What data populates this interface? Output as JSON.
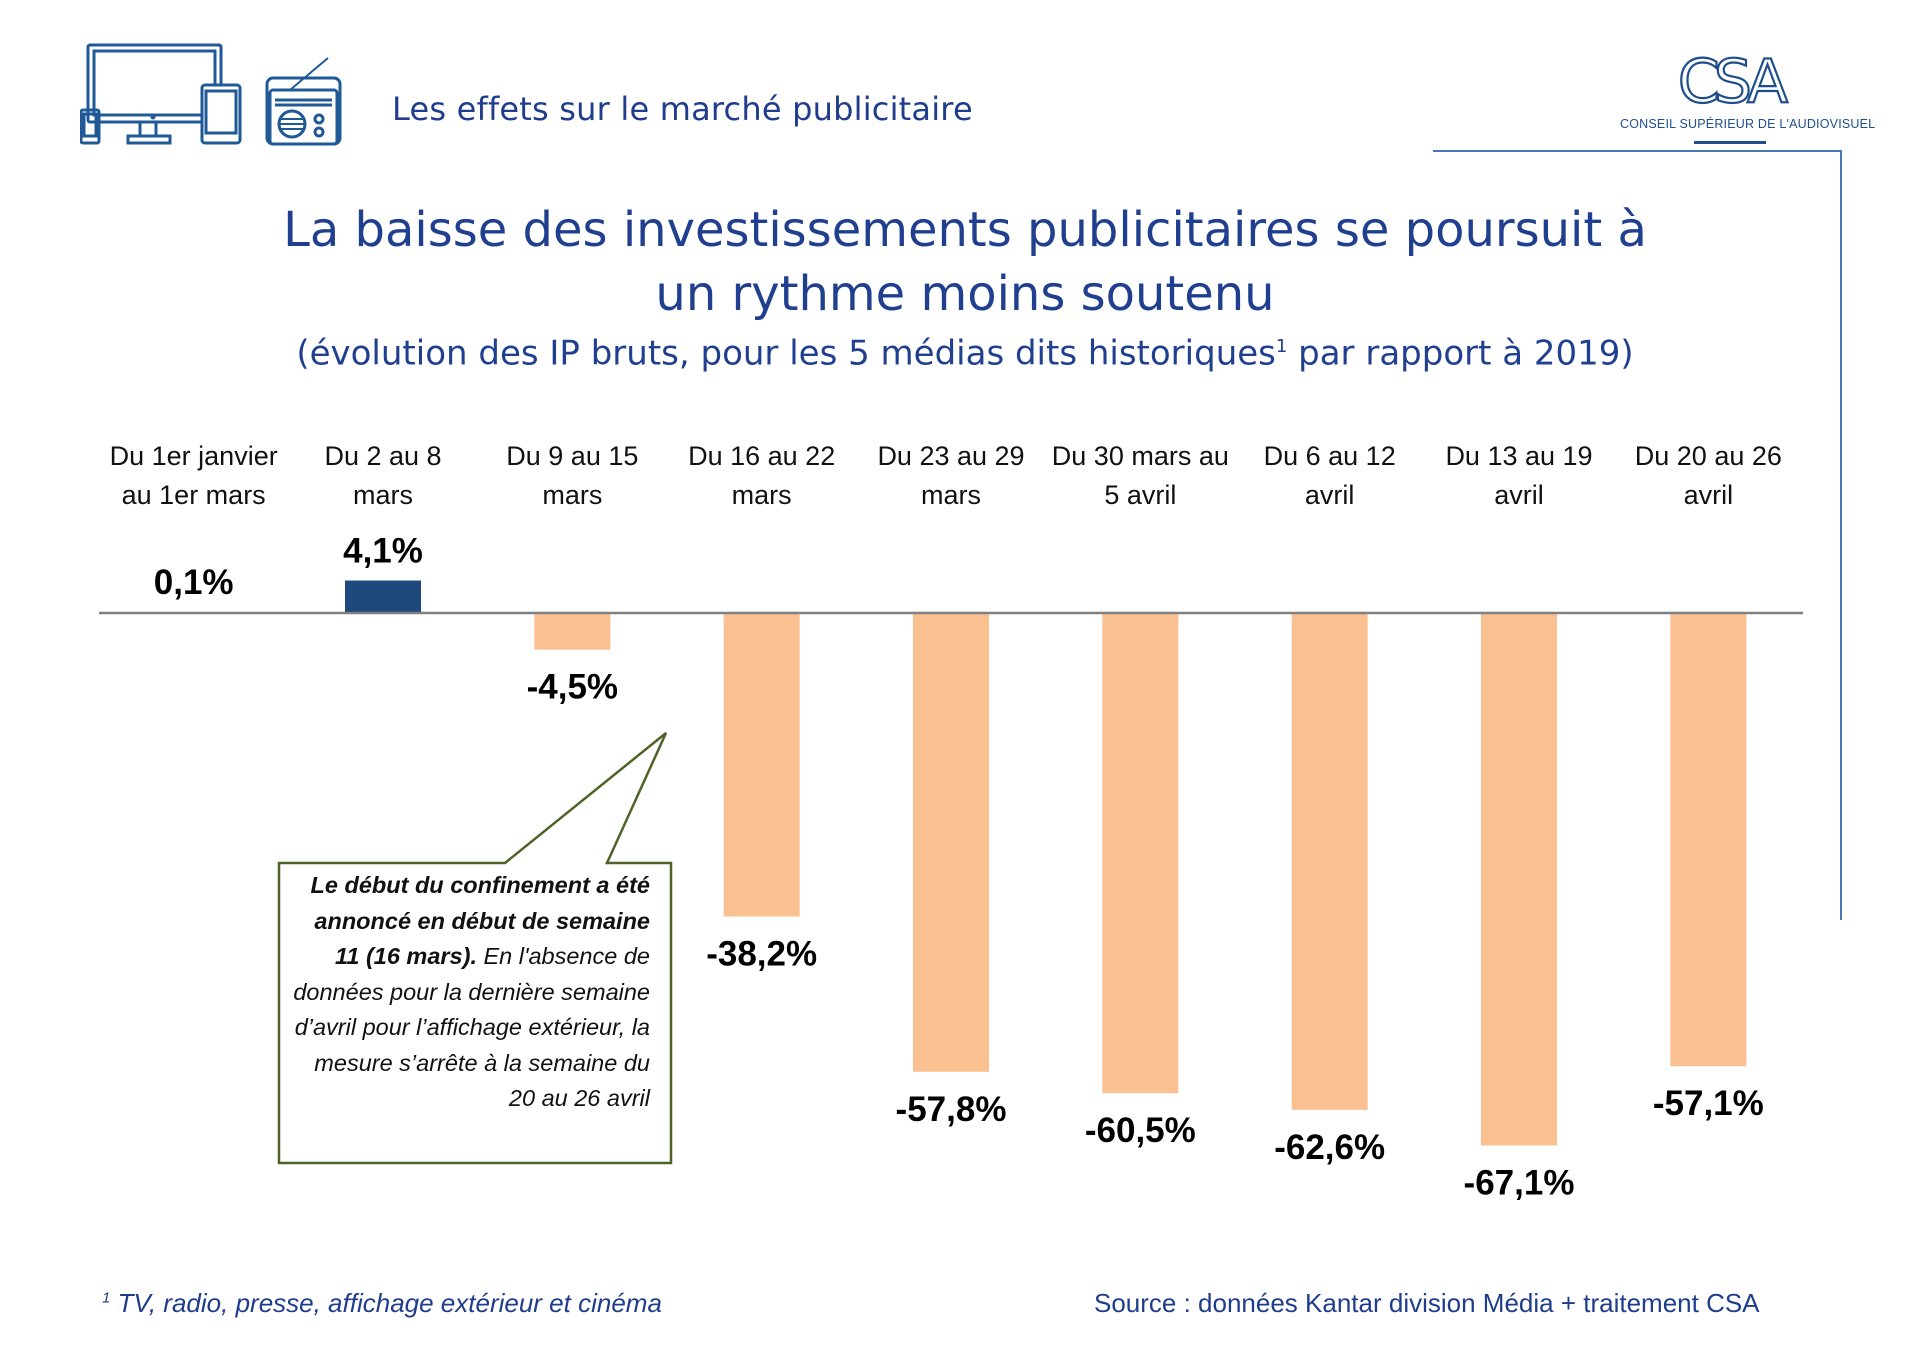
{
  "header": {
    "section_title": "Les effets sur le marché publicitaire",
    "icons": [
      "desktop-monitor-icon",
      "smartphone-icon",
      "tablet-icon",
      "radio-icon"
    ],
    "logo": {
      "mark": "CSA",
      "subtitle": "CONSEIL SUPÉRIEUR DE L'AUDIOVISUEL"
    }
  },
  "title": {
    "line1": "La baisse des investissements publicitaires se poursuit à",
    "line2": "un rythme moins soutenu",
    "subtitle_before": "(évolution des IP bruts, pour les 5 médias dits historiques",
    "subtitle_sup": "1",
    "subtitle_after": " par rapport à 2019)"
  },
  "colors": {
    "title": "#203f8f",
    "positive_bar": "#1f497d",
    "negative_bar": "#fac090",
    "baseline": "#808080",
    "callout_border": "#4f6228",
    "frame": "#4a78b2"
  },
  "callout": {
    "bold_text": "Le début du confinement a été annoncé en début de semaine 11 (16 mars).",
    "normal_text": " En l'absence de données pour la dernière semaine d’avril pour l’affichage extérieur, la mesure s’arrête à la semaine du 20  au 26 avril"
  },
  "footer": {
    "footnote_sup": "1",
    "footnote": " TV, radio, presse, affichage extérieur et cinéma",
    "source": "Source : données Kantar division Média  + traitement CSA"
  },
  "chart_data": {
    "type": "bar",
    "title": "La baisse des investissements publicitaires se poursuit à un rythme moins soutenu",
    "subtitle": "(évolution des IP bruts, pour les 5 médias dits historiques¹ par rapport à 2019)",
    "xlabel": "",
    "ylabel": "",
    "unit": "%",
    "categories": [
      [
        "Du 1er janvier",
        "au 1er mars"
      ],
      [
        "Du 2 au 8",
        "mars"
      ],
      [
        "Du 9 au 15",
        "mars"
      ],
      [
        "Du 16 au 22",
        "mars"
      ],
      [
        "Du 23 au 29",
        "mars"
      ],
      [
        "Du 30 mars au",
        "5 avril"
      ],
      [
        "Du 6 au 12",
        "avril"
      ],
      [
        "Du 13 au 19",
        "avril"
      ],
      [
        "Du 20 au 26",
        "avril"
      ]
    ],
    "values": [
      0.1,
      4.1,
      -4.5,
      -38.2,
      -57.8,
      -60.5,
      -62.6,
      -67.1,
      -57.1
    ],
    "data_labels": [
      "0,1%",
      "4,1%",
      "-4,5%",
      "-38,2%",
      "-57,8%",
      "-60,5%",
      "-62,6%",
      "-67,1%",
      "-57,1%"
    ],
    "ylim": [
      -70,
      10
    ],
    "grid": false,
    "legend": "none",
    "axis_visible": false
  }
}
